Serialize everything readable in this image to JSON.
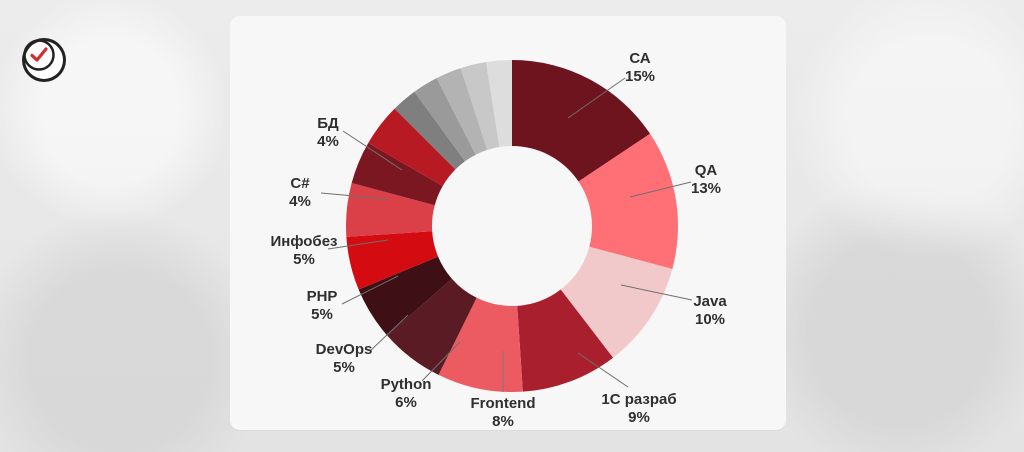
{
  "logo": {
    "icon": "checkmark-circle-icon",
    "accent_color": "#d12d35"
  },
  "chart_data": {
    "type": "pie",
    "categories": [
      "СА",
      "QA",
      "Java",
      "1С разраб",
      "Frontend",
      "Python",
      "DevOps",
      "PHP",
      "Инфобез",
      "C#",
      "БД"
    ],
    "values": [
      15,
      13,
      10,
      9,
      8,
      6,
      5,
      5,
      5,
      4,
      4
    ],
    "labels": [
      "15%",
      "13%",
      "10%",
      "9%",
      "8%",
      "6%",
      "5%",
      "5%",
      "5%",
      "4%",
      "4%"
    ],
    "colors": [
      "#6d141e",
      "#ff6f76",
      "#f2c9cb",
      "#a91f2d",
      "#ec5b61",
      "#5b1b25",
      "#3e0f14",
      "#d40c12",
      "#db3f48",
      "#7b1720",
      "#b81a24"
    ],
    "unlabeled_slice_colors": [
      "#7f7f7f",
      "#9a9a9a",
      "#b3b3b3",
      "#c8c8c8",
      "#ddd"
    ],
    "donut": true
  }
}
